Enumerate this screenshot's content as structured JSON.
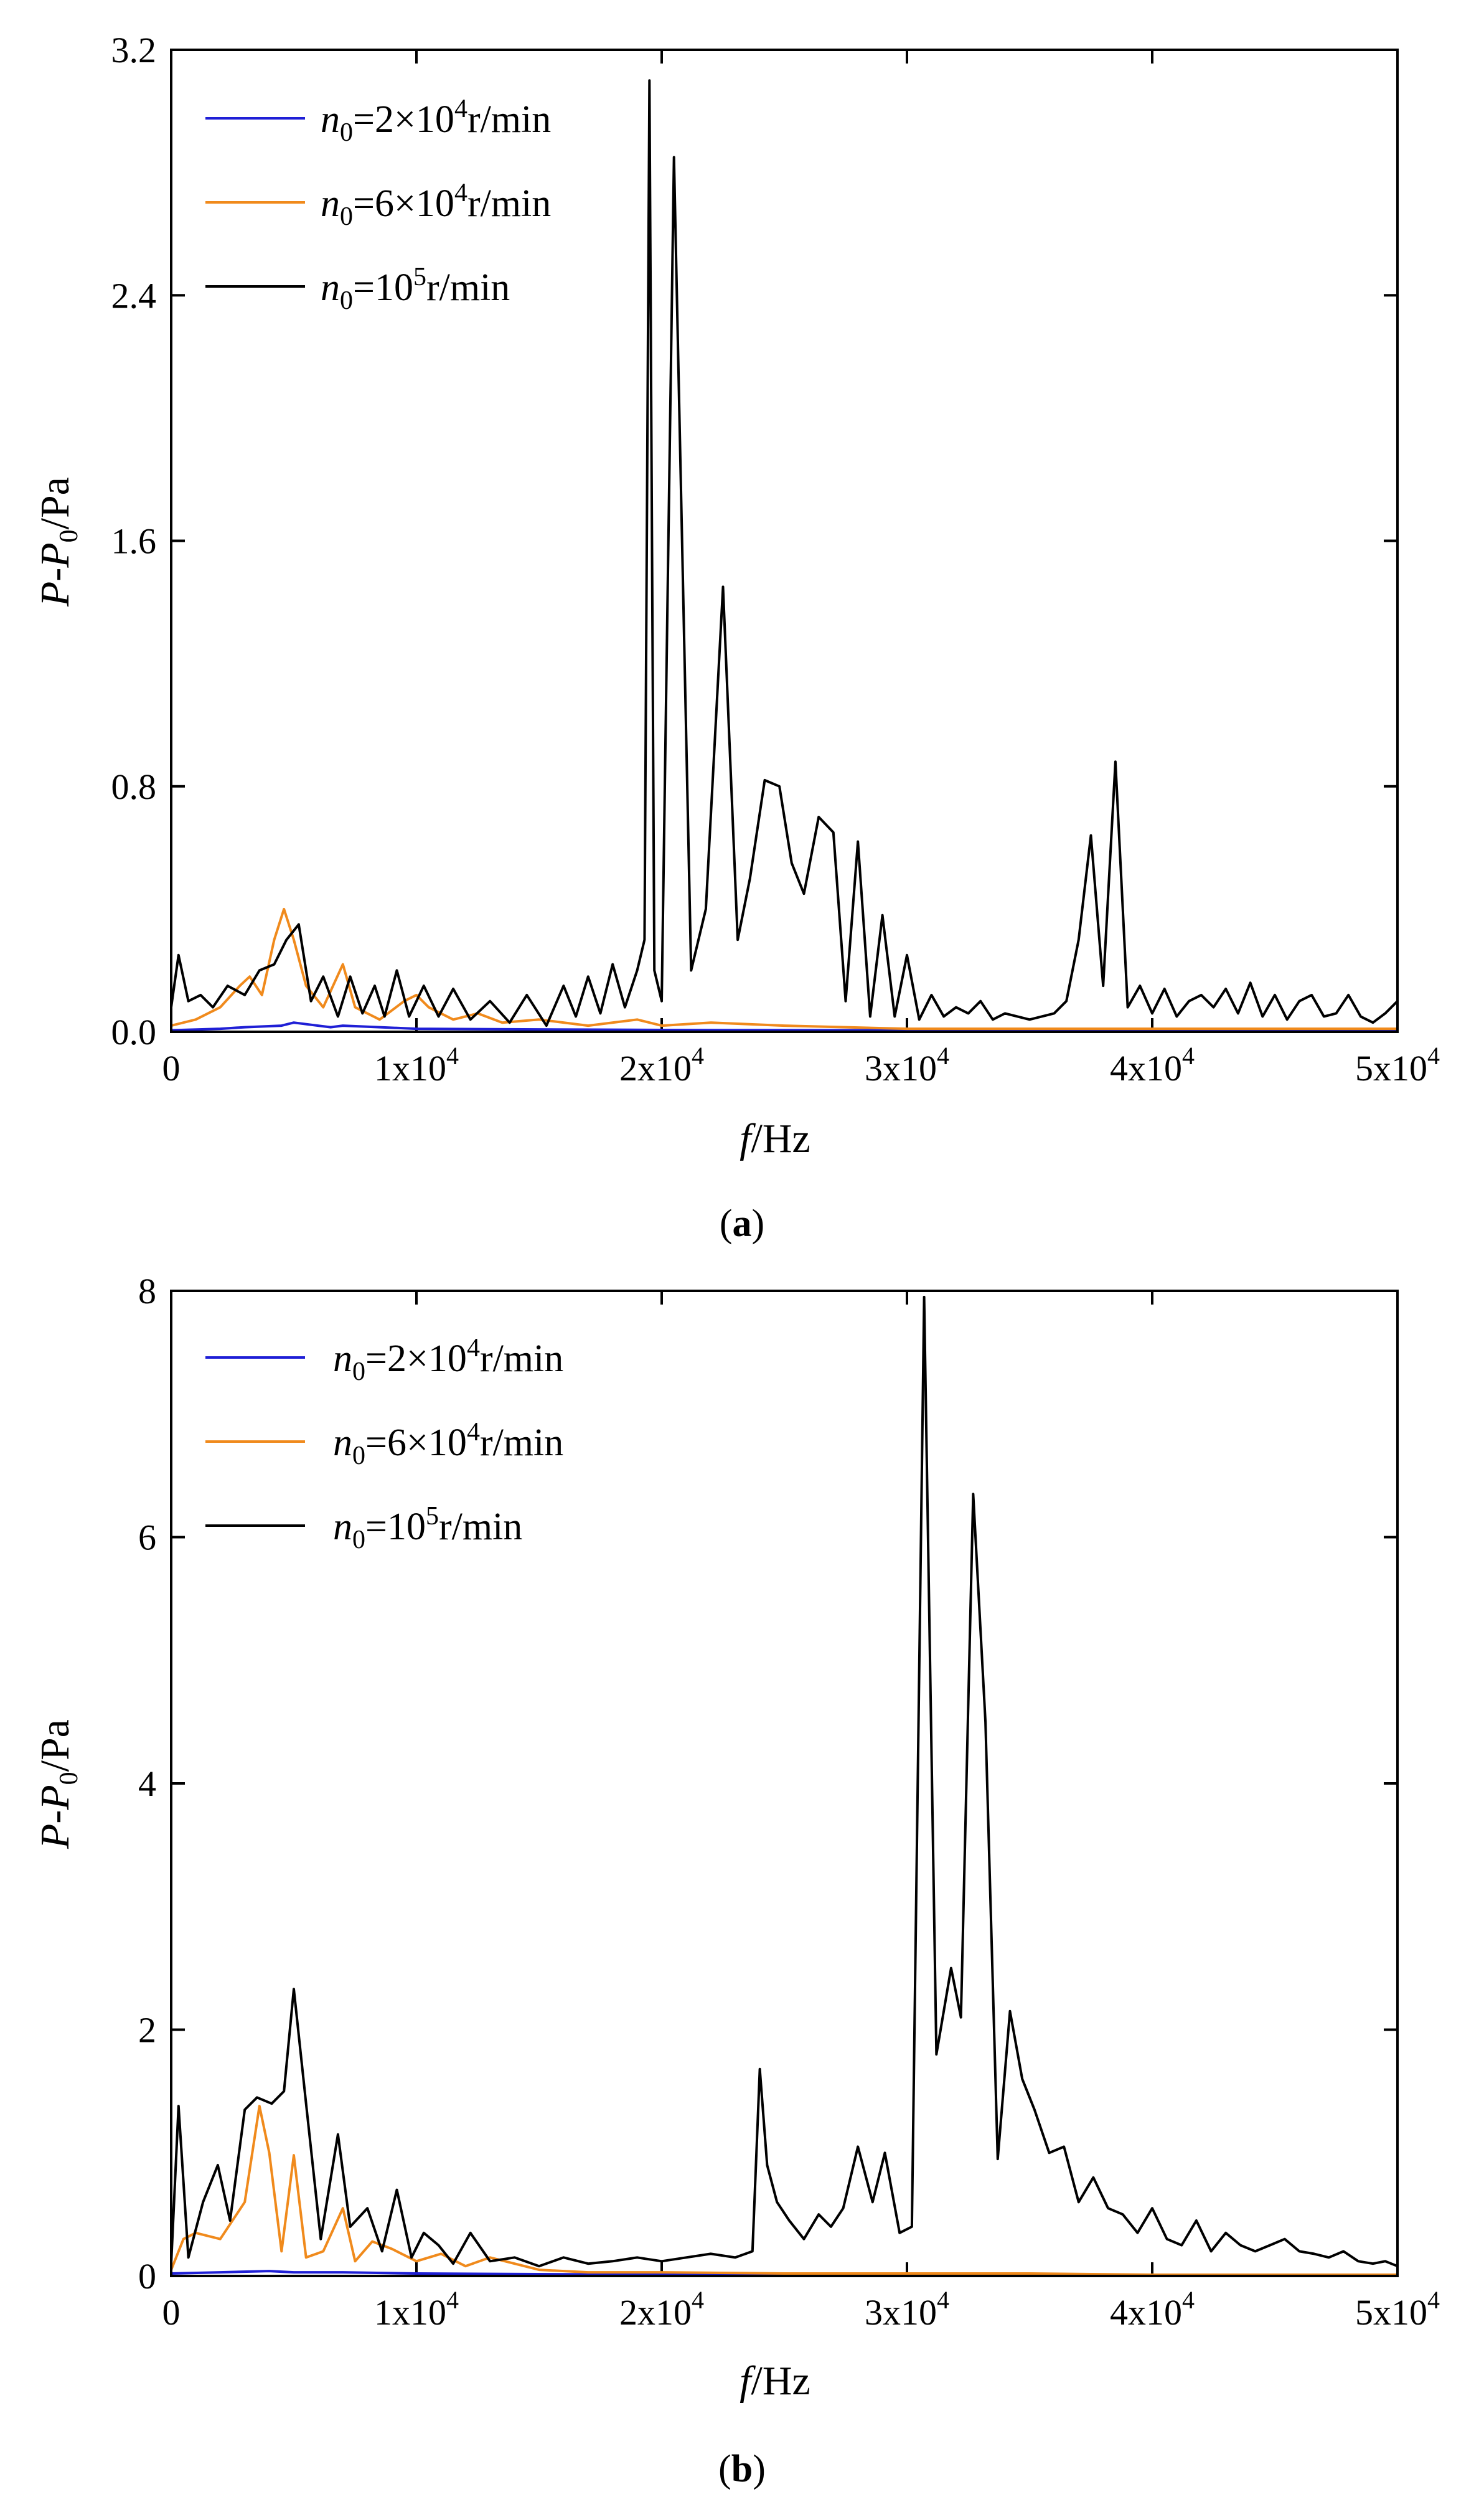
{
  "panels": [
    {
      "caption": "a",
      "chart_data": {
        "type": "line",
        "xlabel_italic": "f",
        "xlabel_rest": "/Hz",
        "ylabel_p": "P",
        "ylabel_mid": "-",
        "ylabel_p0": "P",
        "ylabel_sub": "0",
        "ylabel_rest": "/Pa",
        "xlim": [
          0,
          50000
        ],
        "ylim": [
          0,
          3.2
        ],
        "yticks": [
          0,
          0.8,
          1.6,
          2.4,
          3.2
        ],
        "ytick_labels": [
          "0.0",
          "0.8",
          "1.6",
          "2.4",
          "3.2"
        ],
        "xticks": [
          0,
          10000,
          20000,
          30000,
          40000,
          50000
        ],
        "xtick_labels": [
          "0",
          "1x10",
          "2x10",
          "3x10",
          "4x10",
          "5x10"
        ],
        "xtick_exp": [
          "",
          "4",
          "4",
          "4",
          "4",
          "4"
        ],
        "series": [
          {
            "name": "n0=2×10^4 r/min",
            "legend_n": "n",
            "legend_sub": "0",
            "legend_eq": "=2×10",
            "legend_sup": "4",
            "legend_unit": "r/min",
            "color": "#1f1fd6",
            "x": [
              0,
              2000,
              3000,
              4500,
              5000,
              6500,
              7000,
              10000,
              15000,
              20000,
              30000,
              40000,
              50000
            ],
            "y": [
              0.005,
              0.01,
              0.015,
              0.02,
              0.03,
              0.015,
              0.02,
              0.01,
              0.008,
              0.006,
              0.005,
              0.005,
              0.005
            ]
          },
          {
            "name": "n0=6×10^4 r/min",
            "legend_n": "n",
            "legend_sub": "0",
            "legend_eq": "=6×10",
            "legend_sup": "4",
            "legend_unit": "r/min",
            "color": "#f08a1c",
            "x": [
              0,
              1000,
              2000,
              2800,
              3200,
              3700,
              4200,
              4600,
              5000,
              5500,
              6200,
              7000,
              7500,
              8500,
              9500,
              10000,
              10500,
              11500,
              12500,
              13500,
              15000,
              17000,
              19000,
              20000,
              22000,
              25000,
              30000,
              35000,
              40000,
              50000
            ],
            "y": [
              0.02,
              0.04,
              0.08,
              0.15,
              0.18,
              0.12,
              0.3,
              0.4,
              0.3,
              0.15,
              0.08,
              0.22,
              0.08,
              0.04,
              0.1,
              0.12,
              0.08,
              0.04,
              0.06,
              0.03,
              0.04,
              0.02,
              0.04,
              0.02,
              0.03,
              0.02,
              0.01,
              0.01,
              0.01,
              0.01
            ]
          },
          {
            "name": "n0=10^5 r/min",
            "legend_n": "n",
            "legend_sub": "0",
            "legend_eq": "=10",
            "legend_sup": "5",
            "legend_unit": "r/min",
            "color": "#000000",
            "x": [
              0,
              300,
              700,
              1200,
              1700,
              2300,
              3000,
              3600,
              4200,
              4700,
              5200,
              5700,
              6200,
              6800,
              7300,
              7800,
              8300,
              8700,
              9200,
              9700,
              10300,
              10900,
              11500,
              12200,
              13000,
              13800,
              14500,
              15300,
              16000,
              16500,
              17000,
              17500,
              18000,
              18500,
              19000,
              19300,
              19500,
              19700,
              20000,
              20500,
              21200,
              21800,
              22500,
              23100,
              23600,
              24200,
              24800,
              25300,
              25800,
              26400,
              27000,
              27500,
              28000,
              28500,
              29000,
              29500,
              30000,
              30500,
              31000,
              31500,
              32000,
              32500,
              33000,
              33500,
              34000,
              35000,
              36000,
              36500,
              37000,
              37500,
              38000,
              38500,
              39000,
              39500,
              40000,
              40500,
              41000,
              41500,
              42000,
              42500,
              43000,
              43500,
              44000,
              44500,
              45000,
              45500,
              46000,
              46500,
              47000,
              47500,
              48000,
              48500,
              49000,
              49500,
              50000
            ],
            "y": [
              0.08,
              0.25,
              0.1,
              0.12,
              0.08,
              0.15,
              0.12,
              0.2,
              0.22,
              0.3,
              0.35,
              0.1,
              0.18,
              0.05,
              0.18,
              0.06,
              0.15,
              0.05,
              0.2,
              0.05,
              0.15,
              0.05,
              0.14,
              0.04,
              0.1,
              0.03,
              0.12,
              0.02,
              0.15,
              0.05,
              0.18,
              0.06,
              0.22,
              0.08,
              0.2,
              0.3,
              3.1,
              0.2,
              0.1,
              2.85,
              0.2,
              0.4,
              1.45,
              0.3,
              0.5,
              0.82,
              0.8,
              0.55,
              0.45,
              0.7,
              0.65,
              0.1,
              0.62,
              0.05,
              0.38,
              0.05,
              0.25,
              0.04,
              0.12,
              0.05,
              0.08,
              0.06,
              0.1,
              0.04,
              0.06,
              0.04,
              0.06,
              0.1,
              0.3,
              0.64,
              0.15,
              0.88,
              0.08,
              0.15,
              0.06,
              0.14,
              0.05,
              0.1,
              0.12,
              0.08,
              0.14,
              0.06,
              0.16,
              0.05,
              0.12,
              0.04,
              0.1,
              0.12,
              0.05,
              0.06,
              0.12,
              0.05,
              0.03,
              0.06,
              0.1
            ]
          }
        ]
      }
    },
    {
      "caption": "b",
      "chart_data": {
        "type": "line",
        "xlabel_italic": "f",
        "xlabel_rest": "/Hz",
        "ylabel_p": "P",
        "ylabel_mid": "-",
        "ylabel_p0": "P",
        "ylabel_sub": "0",
        "ylabel_rest": "/Pa",
        "xlim": [
          0,
          50000
        ],
        "ylim": [
          0,
          8
        ],
        "yticks": [
          0,
          2,
          4,
          6,
          8
        ],
        "ytick_labels": [
          "0",
          "2",
          "4",
          "6",
          "8"
        ],
        "xticks": [
          0,
          10000,
          20000,
          30000,
          40000,
          50000
        ],
        "xtick_labels": [
          "0",
          "1x10",
          "2x10",
          "3x10",
          "4x10",
          "5x10"
        ],
        "xtick_exp": [
          "",
          "4",
          "4",
          "4",
          "4",
          "4"
        ],
        "series": [
          {
            "name": "n0=2×10^4 r/min",
            "legend_n": "n",
            "legend_sub": "0",
            "legend_eq": "=2×10",
            "legend_sup": "4",
            "legend_unit": "r/min",
            "color": "#1f1fd6",
            "x": [
              0,
              2000,
              4000,
              5000,
              7000,
              10000,
              20000,
              30000,
              40000,
              50000
            ],
            "y": [
              0.02,
              0.03,
              0.04,
              0.03,
              0.03,
              0.02,
              0.01,
              0.01,
              0.01,
              0.01
            ]
          },
          {
            "name": "n0=6×10^4 r/min",
            "legend_n": "n",
            "legend_sub": "0",
            "legend_eq": "=6×10",
            "legend_sup": "4",
            "legend_unit": "r/min",
            "color": "#f08a1c",
            "x": [
              0,
              500,
              1000,
              2000,
              3000,
              3600,
              4000,
              4500,
              5000,
              5500,
              6200,
              7000,
              7500,
              8200,
              9000,
              10000,
              11000,
              12000,
              13000,
              15000,
              17000,
              20000,
              25000,
              30000,
              35000,
              40000,
              50000
            ],
            "y": [
              0.05,
              0.3,
              0.35,
              0.3,
              0.6,
              1.38,
              1.0,
              0.2,
              0.98,
              0.15,
              0.2,
              0.55,
              0.12,
              0.28,
              0.22,
              0.12,
              0.18,
              0.08,
              0.15,
              0.05,
              0.03,
              0.03,
              0.02,
              0.02,
              0.02,
              0.01,
              0.01
            ]
          },
          {
            "name": "n0=10^5 r/min",
            "legend_n": "n",
            "legend_sub": "0",
            "legend_eq": "=10",
            "legend_sup": "5",
            "legend_unit": "r/min",
            "color": "#000000",
            "x": [
              0,
              300,
              700,
              1300,
              1900,
              2400,
              3000,
              3500,
              4100,
              4600,
              5000,
              5500,
              6100,
              6800,
              7300,
              8000,
              8600,
              9200,
              9800,
              10300,
              10900,
              11500,
              12200,
              13000,
              14000,
              15000,
              16000,
              17000,
              18000,
              19000,
              20000,
              21000,
              22000,
              23000,
              23700,
              24000,
              24300,
              24700,
              25200,
              25800,
              26400,
              26900,
              27400,
              28000,
              28600,
              29100,
              29700,
              30200,
              30700,
              31200,
              31800,
              32200,
              32700,
              33200,
              33700,
              34200,
              34700,
              35200,
              35800,
              36400,
              37000,
              37600,
              38200,
              38800,
              39400,
              40000,
              40600,
              41200,
              41800,
              42400,
              43000,
              43600,
              44200,
              44800,
              45400,
              46000,
              46600,
              47200,
              47800,
              48400,
              49000,
              49500,
              50000
            ],
            "y": [
              0.1,
              1.38,
              0.15,
              0.6,
              0.9,
              0.45,
              1.35,
              1.45,
              1.4,
              1.5,
              2.33,
              1.4,
              0.3,
              1.15,
              0.4,
              0.55,
              0.2,
              0.7,
              0.15,
              0.35,
              0.25,
              0.1,
              0.35,
              0.12,
              0.15,
              0.08,
              0.15,
              0.1,
              0.12,
              0.15,
              0.12,
              0.15,
              0.18,
              0.15,
              0.2,
              1.68,
              0.9,
              0.6,
              0.45,
              0.3,
              0.5,
              0.4,
              0.55,
              1.05,
              0.6,
              1.0,
              0.35,
              0.4,
              7.95,
              1.8,
              2.5,
              2.1,
              6.35,
              4.5,
              0.95,
              2.15,
              1.6,
              1.35,
              1.0,
              1.05,
              0.6,
              0.8,
              0.55,
              0.5,
              0.35,
              0.55,
              0.3,
              0.25,
              0.45,
              0.2,
              0.35,
              0.25,
              0.2,
              0.25,
              0.3,
              0.2,
              0.18,
              0.15,
              0.2,
              0.12,
              0.1,
              0.12,
              0.08
            ]
          }
        ]
      }
    }
  ]
}
